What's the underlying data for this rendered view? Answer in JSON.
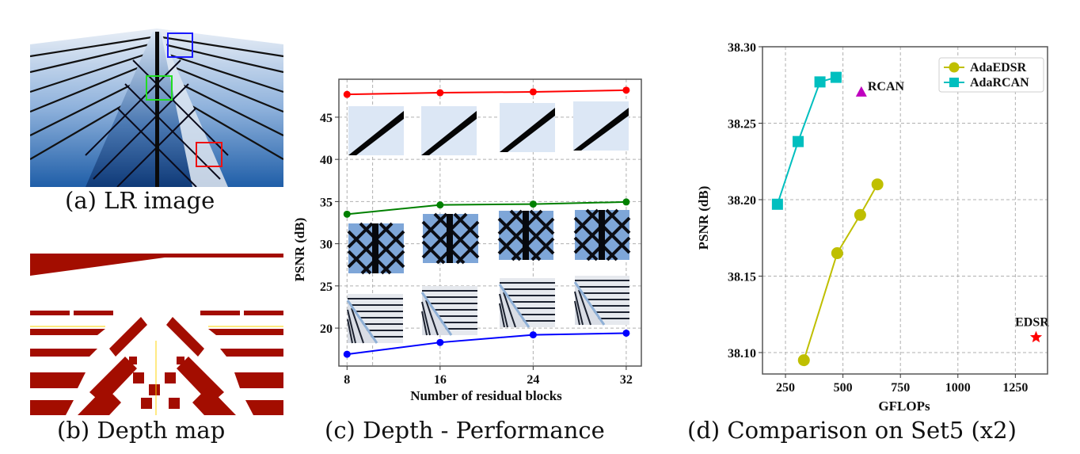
{
  "panels": {
    "a": {
      "caption": "(a) LR image",
      "boxes": [
        {
          "name": "blue-box",
          "color": "#1a1aff"
        },
        {
          "name": "green-box",
          "color": "#22dd22"
        },
        {
          "name": "red-box",
          "color": "#ee1111"
        }
      ]
    },
    "b": {
      "caption": "(b) Depth map"
    },
    "c": {
      "caption": "(c) Depth - Performance"
    },
    "d": {
      "caption": "(d) Comparison on Set5 (x2)"
    }
  },
  "chart_data": [
    {
      "type": "line",
      "title": "",
      "xlabel": "Number of residual blocks",
      "ylabel": "PSNR (dB)",
      "x": [
        8,
        16,
        24,
        32
      ],
      "xticks": [
        8,
        16,
        24,
        32
      ],
      "yticks": [
        20,
        25,
        30,
        35,
        40,
        45
      ],
      "xlim": [
        7.3,
        33.3
      ],
      "ylim": [
        15.5,
        49.5
      ],
      "grid": true,
      "series": [
        {
          "name": "red-patch",
          "color": "#ff0000",
          "values": [
            47.7,
            47.9,
            48.0,
            48.2
          ]
        },
        {
          "name": "green-patch",
          "color": "#008000",
          "values": [
            33.5,
            34.6,
            34.7,
            34.95
          ]
        },
        {
          "name": "blue-patch",
          "color": "#0000ff",
          "values": [
            16.9,
            18.3,
            19.2,
            19.4
          ]
        }
      ]
    },
    {
      "type": "scatter",
      "title": "",
      "xlabel": "GFLOPs",
      "ylabel": "PSNR (dB)",
      "xticks": [
        250,
        500,
        750,
        1000,
        1250
      ],
      "yticks": [
        "38.10",
        "38.15",
        "38.20",
        "38.25",
        "38.30"
      ],
      "xlim": [
        150,
        1390
      ],
      "ylim": [
        38.086,
        38.3
      ],
      "grid": true,
      "legend": "top-right",
      "series": [
        {
          "name": "AdaEDSR",
          "color": "#bfbf00",
          "marker": "circle",
          "line": true,
          "x": [
            330,
            475,
            575,
            650
          ],
          "y": [
            38.095,
            38.165,
            38.19,
            38.21
          ]
        },
        {
          "name": "AdaRCAN",
          "color": "#00bfbf",
          "marker": "square",
          "line": true,
          "x": [
            215,
            305,
            400,
            470
          ],
          "y": [
            38.197,
            38.238,
            38.277,
            38.28
          ]
        }
      ],
      "points": [
        {
          "label": "RCAN",
          "color": "#bf00bf",
          "marker": "triangle",
          "x": 580,
          "y": 38.27
        },
        {
          "label": "EDSR",
          "color": "#ff0000",
          "marker": "star",
          "x": 1340,
          "y": 38.11
        }
      ]
    }
  ]
}
